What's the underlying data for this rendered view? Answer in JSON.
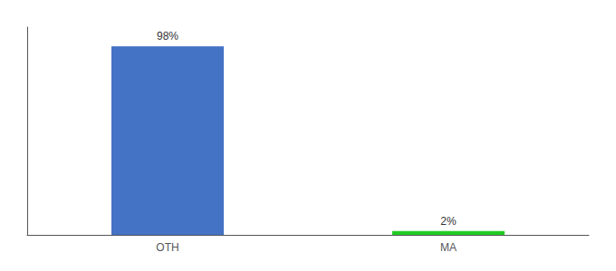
{
  "chart_data": {
    "type": "bar",
    "categories": [
      "OTH",
      "MA"
    ],
    "values": [
      98,
      2
    ],
    "value_labels": [
      "98%",
      "2%"
    ],
    "colors": [
      "#4472c4",
      "#22cc22"
    ],
    "ylim": [
      0,
      108
    ],
    "data_labels": true,
    "tick_labels": "x",
    "grid": false
  }
}
